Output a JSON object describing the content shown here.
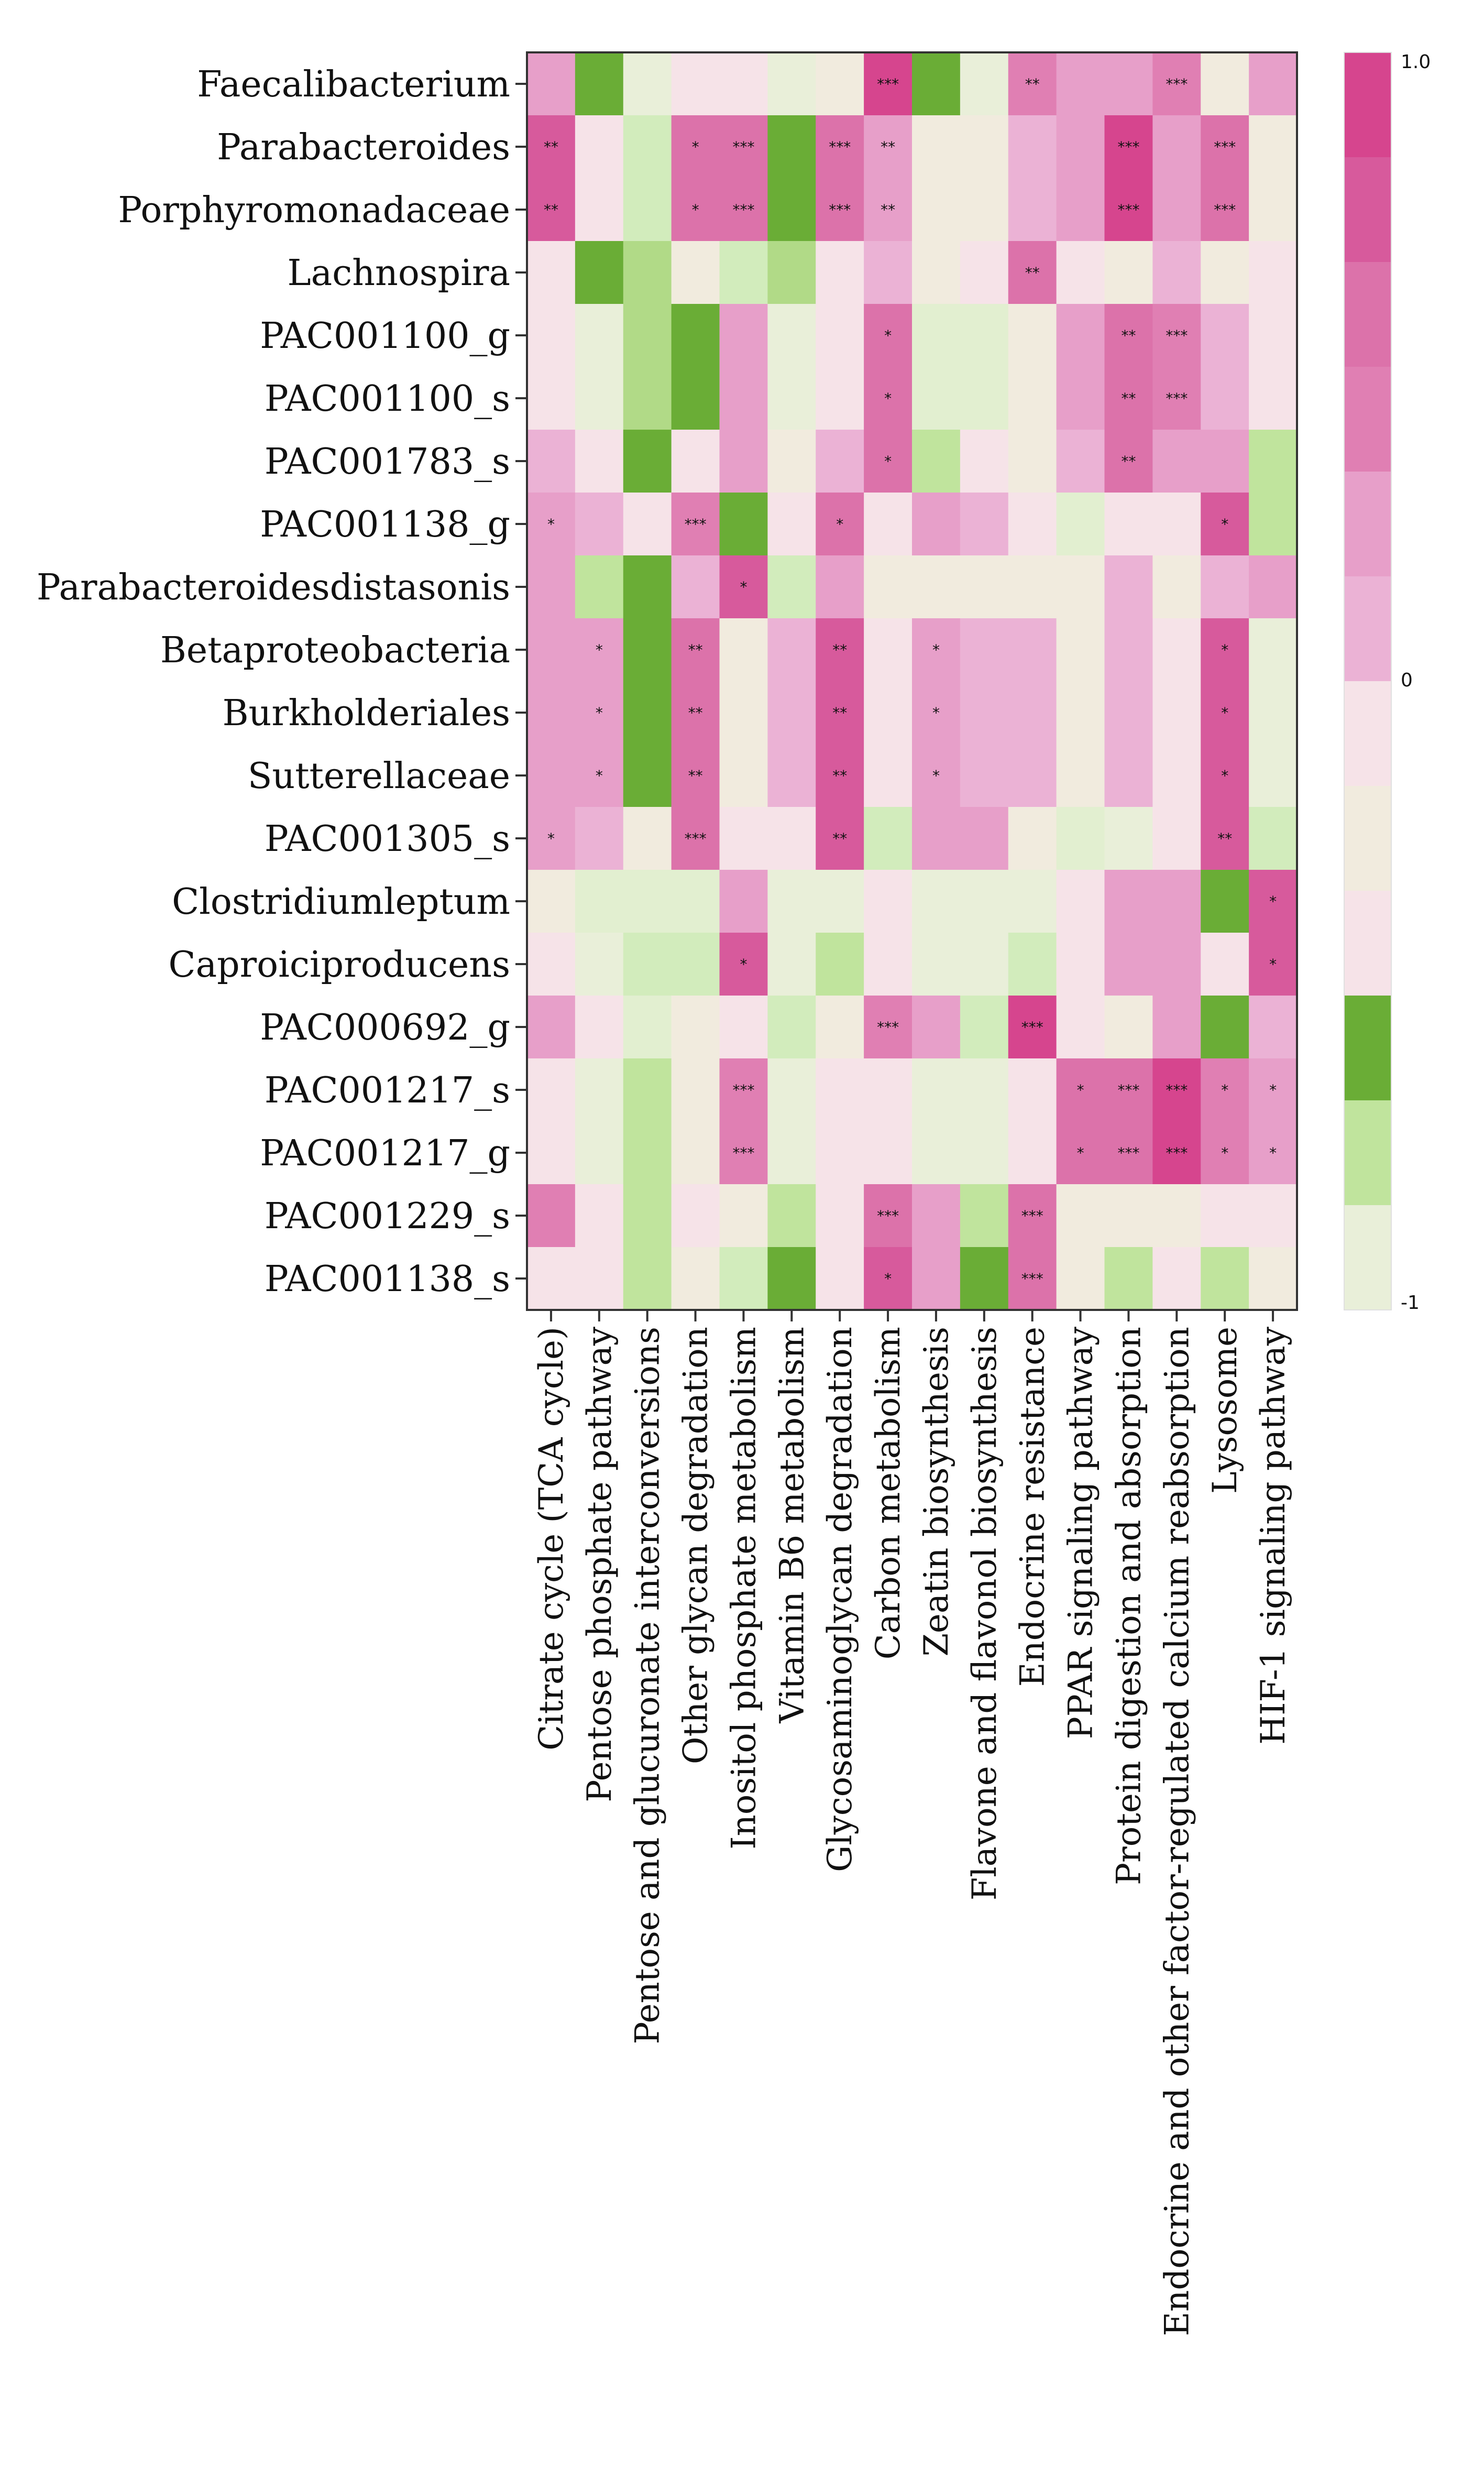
{
  "chart_data": {
    "type": "heatmap",
    "title": "",
    "rows": [
      "Faecalibacterium",
      "Parabacteroides",
      "Porphyromonadaceae",
      "Lachnospira",
      "PAC001100_g",
      "PAC001100_s",
      "PAC001783_s",
      "PAC001138_g",
      "Parabacteroidesdistasonis",
      "Betaproteobacteria",
      "Burkholderiales",
      "Sutterellaceae",
      "PAC001305_s",
      "Clostridiumleptum",
      "Caproiciproducens",
      "PAC000692_g",
      "PAC001217_s",
      "PAC001217_g",
      "PAC001229_s",
      "PAC001138_s"
    ],
    "columns": [
      "Citrate cycle (TCA cycle)",
      "Pentose phosphate pathway",
      "Pentose and glucuronate interconversions",
      "Other glycan degradation",
      "Inositol phosphate metabolism",
      "Vitamin B6 metabolism",
      "Glycosaminoglycan degradation",
      "Carbon metabolism",
      "Zeatin biosynthesis",
      "Flavone and flavonol biosynthesis",
      "Endocrine resistance",
      "PPAR signaling pathway",
      "Protein digestion and absorption",
      "Endocrine and other factor-regulated calcium reabsorption",
      "Lysosome",
      "HIF-1 signaling pathway"
    ],
    "values": [
      [
        0.4,
        -0.8,
        -0.1,
        0.1,
        0.1,
        -0.1,
        0.0,
        0.8,
        -0.8,
        -0.1,
        0.5,
        0.4,
        0.4,
        0.5,
        0.0,
        0.4
      ],
      [
        0.7,
        0.1,
        -0.3,
        0.6,
        0.6,
        -0.8,
        0.6,
        0.4,
        0.0,
        0.0,
        0.3,
        0.4,
        0.9,
        0.4,
        0.6,
        0.0
      ],
      [
        0.7,
        0.1,
        -0.3,
        0.6,
        0.6,
        -0.8,
        0.6,
        0.4,
        0.0,
        0.0,
        0.3,
        0.4,
        0.9,
        0.4,
        0.6,
        0.0
      ],
      [
        0.1,
        -0.8,
        -0.5,
        0.0,
        -0.3,
        -0.5,
        0.1,
        0.3,
        0.0,
        0.1,
        0.6,
        0.1,
        0.0,
        0.3,
        0.0,
        0.1
      ],
      [
        0.1,
        -0.1,
        -0.5,
        -0.8,
        0.4,
        -0.1,
        0.1,
        0.6,
        -0.2,
        -0.2,
        0.0,
        0.4,
        0.6,
        0.5,
        0.3,
        0.1
      ],
      [
        0.1,
        -0.1,
        -0.5,
        -0.8,
        0.4,
        -0.1,
        0.1,
        0.6,
        -0.2,
        -0.2,
        0.0,
        0.4,
        0.6,
        0.5,
        0.3,
        0.1
      ],
      [
        0.3,
        0.1,
        -0.8,
        0.1,
        0.4,
        0.0,
        0.3,
        0.6,
        -0.4,
        0.1,
        0.0,
        0.3,
        0.6,
        0.4,
        0.4,
        -0.4
      ],
      [
        0.4,
        0.3,
        0.1,
        0.5,
        -0.8,
        0.1,
        0.6,
        0.1,
        0.4,
        0.3,
        0.1,
        -0.2,
        0.1,
        0.1,
        0.7,
        -0.4
      ],
      [
        0.4,
        -0.4,
        -0.8,
        0.3,
        0.7,
        -0.3,
        0.4,
        0.0,
        0.0,
        0.0,
        0.0,
        0.0,
        0.3,
        0.0,
        0.3,
        0.4
      ],
      [
        0.4,
        0.4,
        -0.8,
        0.6,
        0.0,
        0.3,
        0.7,
        0.1,
        0.4,
        0.3,
        0.3,
        0.0,
        0.3,
        0.1,
        0.7,
        -0.1
      ],
      [
        0.4,
        0.4,
        -0.8,
        0.6,
        0.0,
        0.3,
        0.7,
        0.1,
        0.4,
        0.3,
        0.3,
        0.0,
        0.3,
        0.1,
        0.7,
        -0.1
      ],
      [
        0.4,
        0.4,
        -0.8,
        0.6,
        0.0,
        0.3,
        0.7,
        0.1,
        0.4,
        0.3,
        0.3,
        0.0,
        0.3,
        0.1,
        0.7,
        -0.1
      ],
      [
        0.4,
        0.3,
        0.0,
        0.6,
        0.1,
        0.1,
        0.7,
        -0.3,
        0.4,
        0.4,
        0.0,
        -0.2,
        -0.1,
        0.1,
        0.7,
        -0.3
      ],
      [
        0.0,
        -0.2,
        -0.2,
        -0.2,
        0.4,
        -0.1,
        -0.1,
        0.1,
        -0.1,
        -0.1,
        -0.1,
        0.1,
        0.4,
        0.4,
        -0.8,
        0.7
      ],
      [
        0.1,
        -0.1,
        -0.3,
        -0.3,
        0.7,
        -0.1,
        -0.4,
        0.1,
        -0.1,
        -0.1,
        -0.3,
        0.1,
        0.4,
        0.4,
        0.1,
        0.7
      ],
      [
        0.4,
        0.1,
        -0.2,
        0.0,
        0.1,
        -0.3,
        0.0,
        0.5,
        0.4,
        -0.3,
        0.9,
        0.1,
        0.0,
        0.4,
        -0.8,
        0.3
      ],
      [
        0.1,
        -0.1,
        -0.4,
        0.0,
        0.5,
        -0.1,
        0.1,
        0.1,
        -0.1,
        -0.1,
        0.1,
        0.6,
        0.6,
        0.9,
        0.5,
        0.4
      ],
      [
        0.1,
        -0.1,
        -0.4,
        0.0,
        0.5,
        -0.1,
        0.1,
        0.1,
        -0.1,
        -0.1,
        0.1,
        0.6,
        0.6,
        0.9,
        0.5,
        0.4
      ],
      [
        0.5,
        0.1,
        -0.4,
        0.1,
        0.0,
        -0.4,
        0.1,
        0.6,
        0.4,
        -0.4,
        0.6,
        0.0,
        0.0,
        0.0,
        0.1,
        0.1
      ],
      [
        0.1,
        0.1,
        -0.4,
        0.0,
        -0.3,
        -0.8,
        0.1,
        0.7,
        0.4,
        -0.8,
        0.6,
        0.0,
        -0.4,
        0.1,
        -0.4,
        0.0
      ]
    ],
    "significance": [
      [
        "",
        "",
        "",
        "",
        "",
        "",
        "",
        "***",
        "",
        "",
        "**",
        "",
        "",
        "***",
        "",
        ""
      ],
      [
        "**",
        "",
        "",
        "*",
        "***",
        "",
        "***",
        "**",
        "",
        "",
        "",
        "",
        "***",
        "",
        "***",
        ""
      ],
      [
        "**",
        "",
        "",
        "*",
        "***",
        "",
        "***",
        "**",
        "",
        "",
        "",
        "",
        "***",
        "",
        "***",
        ""
      ],
      [
        "",
        "",
        "",
        "",
        "",
        "",
        "",
        "",
        "",
        "",
        "**",
        "",
        "",
        "",
        "",
        ""
      ],
      [
        "",
        "",
        "",
        "",
        "",
        "",
        "",
        "*",
        "",
        "",
        "",
        "",
        "**",
        "***",
        "",
        ""
      ],
      [
        "",
        "",
        "",
        "",
        "",
        "",
        "",
        "*",
        "",
        "",
        "",
        "",
        "**",
        "***",
        "",
        ""
      ],
      [
        "",
        "",
        "",
        "",
        "",
        "",
        "",
        "*",
        "",
        "",
        "",
        "",
        "**",
        "",
        "",
        ""
      ],
      [
        "*",
        "",
        "",
        "***",
        "",
        "",
        "*",
        "",
        "",
        "",
        "",
        "",
        "",
        "",
        "*",
        ""
      ],
      [
        "",
        "",
        "",
        "",
        "*",
        "",
        "",
        "",
        "",
        "",
        "",
        "",
        "",
        "",
        "",
        ""
      ],
      [
        "",
        "*",
        "",
        "**",
        "",
        "",
        "**",
        "",
        "*",
        "",
        "",
        "",
        "",
        "",
        "*",
        ""
      ],
      [
        "",
        "*",
        "",
        "**",
        "",
        "",
        "**",
        "",
        "*",
        "",
        "",
        "",
        "",
        "",
        "*",
        ""
      ],
      [
        "",
        "*",
        "",
        "**",
        "",
        "",
        "**",
        "",
        "*",
        "",
        "",
        "",
        "",
        "",
        "*",
        ""
      ],
      [
        "*",
        "",
        "",
        "***",
        "",
        "",
        "**",
        "",
        "",
        "",
        "",
        "",
        "",
        "",
        "**",
        ""
      ],
      [
        "",
        "",
        "",
        "",
        "",
        "",
        "",
        "",
        "",
        "",
        "",
        "",
        "",
        "",
        "",
        "*"
      ],
      [
        "",
        "",
        "",
        "",
        "*",
        "",
        "",
        "",
        "",
        "",
        "",
        "",
        "",
        "",
        "",
        "*"
      ],
      [
        "",
        "",
        "",
        "",
        "",
        "",
        "",
        "***",
        "",
        "",
        "***",
        "",
        "",
        "",
        "",
        ""
      ],
      [
        "",
        "",
        "",
        "",
        "***",
        "",
        "",
        "",
        "",
        "",
        "",
        "*",
        "***",
        "***",
        "*",
        "*"
      ],
      [
        "",
        "",
        "",
        "",
        "***",
        "",
        "",
        "",
        "",
        "",
        "",
        "*",
        "***",
        "***",
        "*",
        "*"
      ],
      [
        "",
        "",
        "",
        "",
        "",
        "",
        "",
        "***",
        "",
        "",
        "***",
        "",
        "",
        "",
        "",
        ""
      ],
      [
        "",
        "",
        "",
        "",
        "",
        "",
        "",
        "*",
        "",
        "",
        "***",
        "",
        "",
        "",
        "",
        ""
      ]
    ],
    "colorscale": {
      "min": -1,
      "max": 1,
      "tick_labels": [
        "1.0",
        "0",
        "-1"
      ],
      "tick_values": [
        1,
        0,
        -1
      ],
      "bins": [
        {
          "value": 0.9,
          "color": "#d6458e"
        },
        {
          "value": 0.7,
          "color": "#d75a9c"
        },
        {
          "value": 0.6,
          "color": "#dc72aa"
        },
        {
          "value": 0.5,
          "color": "#e07fb3"
        },
        {
          "value": 0.4,
          "color": "#e79fc9"
        },
        {
          "value": 0.3,
          "color": "#ebb2d5"
        },
        {
          "value": 0.1,
          "color": "#f6e3e8"
        },
        {
          "value": 0.0,
          "color": "#f1ebde"
        },
        {
          "value": -0.1,
          "color": "#e9efd9"
        },
        {
          "value": -0.2,
          "color": "#e2efd0"
        },
        {
          "value": -0.3,
          "color": "#d2ecbc"
        },
        {
          "value": -0.4,
          "color": "#c0e49d"
        },
        {
          "value": -0.5,
          "color": "#b1da87"
        },
        {
          "value": -0.8,
          "color": "#6aad36"
        }
      ]
    },
    "xlabel": "",
    "ylabel": ""
  }
}
